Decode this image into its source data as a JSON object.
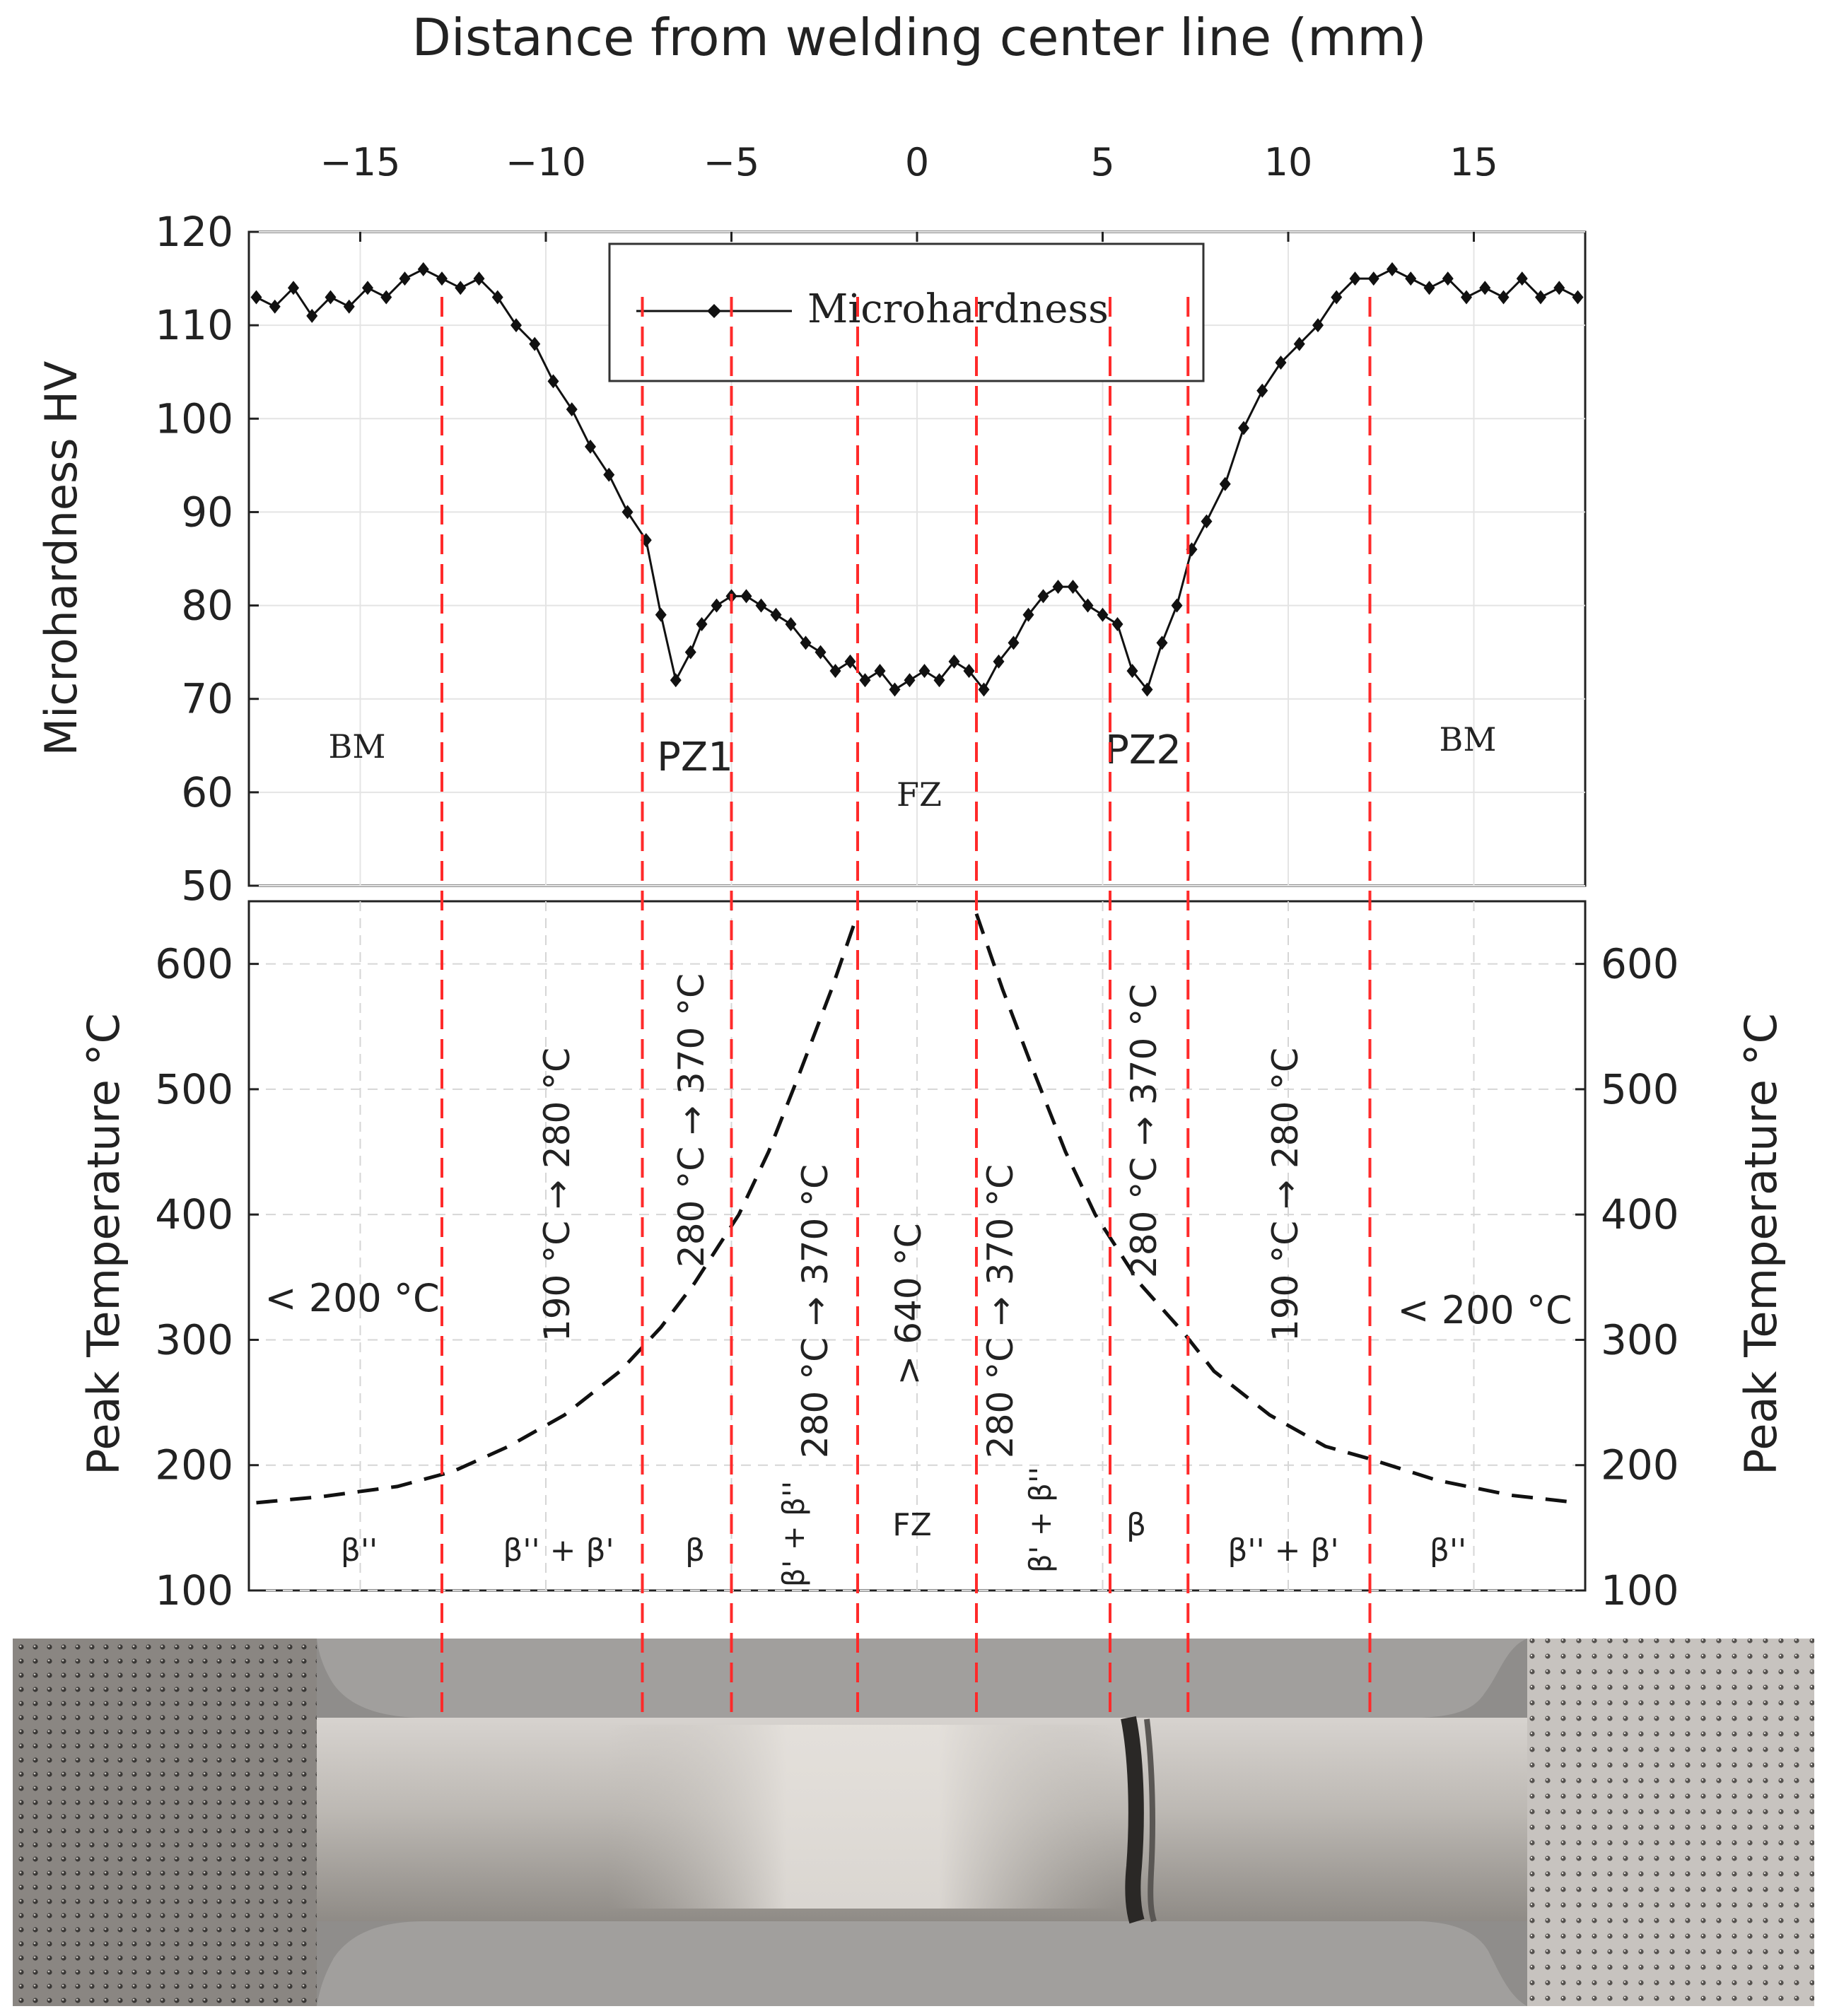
{
  "chart_data": {
    "type": "line",
    "title": "",
    "x_axis": {
      "label": "Distance from welding center line (mm)",
      "position": "top",
      "range": [
        -18,
        18
      ],
      "ticks": [
        -15,
        -10,
        -5,
        0,
        5,
        10,
        15
      ],
      "tick_labels": [
        "−15",
        "−10",
        "−5",
        "0",
        "5",
        "10",
        "15"
      ]
    },
    "panels": [
      {
        "name": "microhardness",
        "ylabel": "Microhardness HV",
        "ylim": [
          50,
          120
        ],
        "yticks": [
          50,
          60,
          70,
          80,
          90,
          100,
          110,
          120
        ],
        "grid": true,
        "legend": {
          "label": "Microhardness",
          "placement": "top-center"
        },
        "series": [
          {
            "name": "Microhardness",
            "color": "#111111",
            "marker": "diamond",
            "x": [
              -17.8,
              -17.3,
              -16.8,
              -16.3,
              -15.8,
              -15.3,
              -14.8,
              -14.3,
              -13.8,
              -13.3,
              -12.8,
              -12.3,
              -11.8,
              -11.3,
              -10.8,
              -10.3,
              -9.8,
              -9.3,
              -8.8,
              -8.3,
              -7.8,
              -7.3,
              -6.9,
              -6.5,
              -6.1,
              -5.8,
              -5.4,
              -5.0,
              -4.6,
              -4.2,
              -3.8,
              -3.4,
              -3.0,
              -2.6,
              -2.2,
              -1.8,
              -1.4,
              -1.0,
              -0.6,
              -0.2,
              0.2,
              0.6,
              1.0,
              1.4,
              1.8,
              2.2,
              2.6,
              3.0,
              3.4,
              3.8,
              4.2,
              4.6,
              5.0,
              5.4,
              5.8,
              6.2,
              6.6,
              7.0,
              7.4,
              7.8,
              8.3,
              8.8,
              9.3,
              9.8,
              10.3,
              10.8,
              11.3,
              11.8,
              12.3,
              12.8,
              13.3,
              13.8,
              14.3,
              14.8,
              15.3,
              15.8,
              16.3,
              16.8,
              17.3,
              17.8
            ],
            "y": [
              113,
              112,
              114,
              111,
              113,
              112,
              114,
              113,
              115,
              116,
              115,
              114,
              115,
              113,
              110,
              108,
              104,
              101,
              97,
              94,
              90,
              87,
              79,
              72,
              75,
              78,
              80,
              81,
              81,
              80,
              79,
              78,
              76,
              75,
              73,
              74,
              72,
              73,
              71,
              72,
              73,
              72,
              74,
              73,
              71,
              74,
              76,
              79,
              81,
              82,
              82,
              80,
              79,
              78,
              73,
              71,
              76,
              80,
              86,
              89,
              93,
              99,
              103,
              106,
              108,
              110,
              113,
              115,
              115,
              116,
              115,
              114,
              115,
              113,
              114,
              113,
              115,
              113,
              114,
              113
            ]
          }
        ],
        "annotations": [
          "BM",
          "PZ1",
          "FZ",
          "PZ2",
          "BM"
        ]
      },
      {
        "name": "peak-temperature",
        "ylabel": "Peak Temperature °C",
        "ylabel_right": "Peak Temperature °C",
        "ylim": [
          100,
          650
        ],
        "yticks": [
          100,
          200,
          300,
          400,
          500,
          600
        ],
        "grid": true,
        "series": [
          {
            "name": "left-branch",
            "style": "dashed",
            "color": "#111111",
            "x": [
              -17.8,
              -16,
              -14,
              -12.5,
              -11,
              -9.5,
              -8,
              -6.9,
              -6,
              -4.8,
              -4,
              -3.2,
              -2.3,
              -1.6
            ],
            "y": [
              170,
              175,
              183,
              195,
              215,
              240,
              275,
              310,
              345,
              400,
              450,
              510,
              580,
              640
            ]
          },
          {
            "name": "right-branch",
            "style": "dashed",
            "color": "#111111",
            "x": [
              1.6,
              2.3,
              3.2,
              4,
              4.8,
              6,
              7.2,
              8,
              9.5,
              11,
              12.2,
              14,
              16,
              17.8
            ],
            "y": [
              640,
              580,
              510,
              450,
              400,
              345,
              305,
              275,
              240,
              215,
              205,
              188,
              176,
              170
            ]
          }
        ],
        "temperature_labels": [
          "< 200 °C",
          "190 °C → 280 °C",
          "280 °C → 370 °C",
          "280 °C → 370 °C",
          "> 640 °C",
          "280 °C → 370 °C",
          "280 °C → 370 °C",
          "190 °C → 280 °C",
          "< 200 °C"
        ],
        "phase_labels": [
          "β''",
          "β'' + β'",
          "β",
          "β' + β''",
          "FZ",
          "β' + β''",
          "β",
          "β'' + β'",
          "β''"
        ]
      }
    ],
    "boundaries_mm": [
      -12.8,
      -7.4,
      -5.0,
      -1.6,
      1.6,
      5.2,
      7.3,
      12.2
    ],
    "boundary_color": "#ff2a2a"
  }
}
